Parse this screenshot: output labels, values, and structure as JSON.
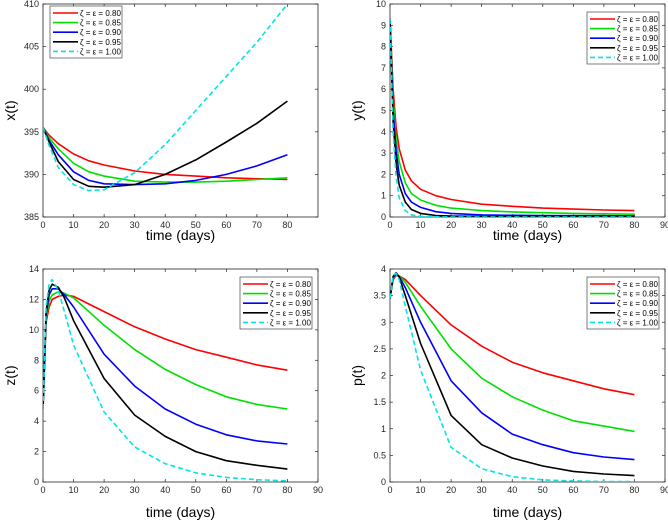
{
  "legend_labels": [
    "ζ = ε = 0.80",
    "ζ = ε = 0.85",
    "ζ = ε = 0.90",
    "ζ = ε = 0.95",
    "ζ = ε = 1.00"
  ],
  "series_colors": [
    "#ff0000",
    "#00e000",
    "#0000ff",
    "#000000",
    "#00e5e5"
  ],
  "chart_data": [
    {
      "type": "line",
      "title": "",
      "xlabel": "time (days)",
      "ylabel": "x(t)",
      "xlim": [
        0,
        90
      ],
      "ylim": [
        385,
        410
      ],
      "xticks": [
        "0",
        "10",
        "20",
        "30",
        "40",
        "50",
        "60",
        "70",
        "80"
      ],
      "yticks": [
        "385",
        "390",
        "395",
        "400",
        "405",
        "410"
      ],
      "legend": "top-left",
      "x": [
        0,
        2,
        5,
        10,
        15,
        20,
        30,
        40,
        50,
        60,
        70,
        80
      ],
      "series": [
        {
          "name": "ζ = ε = 0.80",
          "values": [
            395.5,
            394.6,
            393.6,
            392.4,
            391.6,
            391.1,
            390.4,
            390.0,
            389.8,
            389.6,
            389.5,
            389.4
          ]
        },
        {
          "name": "ζ = ε = 0.85",
          "values": [
            395.5,
            394.3,
            393.0,
            391.3,
            390.3,
            389.8,
            389.2,
            389.1,
            389.1,
            389.2,
            389.4,
            389.6
          ]
        },
        {
          "name": "ζ = ε = 0.90",
          "values": [
            395.5,
            394.0,
            392.3,
            390.3,
            389.3,
            388.9,
            388.8,
            388.9,
            389.3,
            390.0,
            391.0,
            392.3
          ]
        },
        {
          "name": "ζ = ε = 0.95",
          "values": [
            395.5,
            393.8,
            391.5,
            389.4,
            388.6,
            388.5,
            388.8,
            390.0,
            391.7,
            393.8,
            396.0,
            398.6
          ]
        },
        {
          "name": "ζ = ε = 1.00",
          "values": [
            395.5,
            393.4,
            390.8,
            388.8,
            388.1,
            388.2,
            390.2,
            393.5,
            397.5,
            401.5,
            405.5,
            410.0
          ]
        }
      ]
    },
    {
      "type": "line",
      "title": "",
      "xlabel": "time (days)",
      "ylabel": "y(t)",
      "xlim": [
        0,
        90
      ],
      "ylim": [
        0,
        10
      ],
      "xticks": [
        "0",
        "10",
        "20",
        "30",
        "40",
        "50",
        "60",
        "70",
        "80",
        "90"
      ],
      "yticks": [
        "0",
        "1",
        "2",
        "3",
        "4",
        "5",
        "6",
        "7",
        "8",
        "9",
        "10"
      ],
      "legend": "top-right",
      "x": [
        0,
        1,
        2,
        3,
        5,
        7,
        10,
        15,
        20,
        30,
        40,
        50,
        60,
        70,
        80
      ],
      "series": [
        {
          "name": "ζ = ε = 0.80",
          "values": [
            9.3,
            6.0,
            4.2,
            3.2,
            2.2,
            1.7,
            1.3,
            1.0,
            0.82,
            0.6,
            0.5,
            0.42,
            0.37,
            0.33,
            0.3
          ]
        },
        {
          "name": "ζ = ε = 0.85",
          "values": [
            9.3,
            5.5,
            3.6,
            2.6,
            1.6,
            1.1,
            0.8,
            0.55,
            0.42,
            0.3,
            0.24,
            0.2,
            0.17,
            0.15,
            0.13
          ]
        },
        {
          "name": "ζ = ε = 0.90",
          "values": [
            9.3,
            5.0,
            3.1,
            2.0,
            1.1,
            0.7,
            0.45,
            0.25,
            0.17,
            0.1,
            0.08,
            0.07,
            0.06,
            0.06,
            0.05
          ]
        },
        {
          "name": "ζ = ε = 0.95",
          "values": [
            9.3,
            4.5,
            2.5,
            1.5,
            0.7,
            0.35,
            0.17,
            0.07,
            0.04,
            0.02,
            0.02,
            0.02,
            0.02,
            0.02,
            0.02
          ]
        },
        {
          "name": "ζ = ε = 1.00",
          "values": [
            9.3,
            4.0,
            1.9,
            0.9,
            0.3,
            0.1,
            0.03,
            0.01,
            0,
            0,
            0,
            0,
            0,
            0,
            0
          ]
        }
      ]
    },
    {
      "type": "line",
      "title": "",
      "xlabel": "time (days)",
      "ylabel": "z(t)",
      "xlim": [
        0,
        90
      ],
      "ylim": [
        0,
        14
      ],
      "xticks": [
        "0",
        "10",
        "20",
        "30",
        "40",
        "50",
        "60",
        "70",
        "80",
        "90"
      ],
      "yticks": [
        "0",
        "2",
        "4",
        "6",
        "8",
        "10",
        "12",
        "14"
      ],
      "legend": "top-right",
      "x": [
        0,
        1,
        2,
        3,
        5,
        7,
        10,
        20,
        30,
        40,
        50,
        60,
        70,
        80
      ],
      "series": [
        {
          "name": "ζ = ε = 0.80",
          "values": [
            4.8,
            10.5,
            11.5,
            12.0,
            12.2,
            12.3,
            12.2,
            11.2,
            10.2,
            9.4,
            8.7,
            8.2,
            7.7,
            7.35
          ]
        },
        {
          "name": "ζ = ε = 0.85",
          "values": [
            4.8,
            10.8,
            11.9,
            12.3,
            12.5,
            12.4,
            12.1,
            10.3,
            8.7,
            7.4,
            6.4,
            5.6,
            5.1,
            4.8
          ]
        },
        {
          "name": "ζ = ε = 0.90",
          "values": [
            4.8,
            11.0,
            12.3,
            12.7,
            12.7,
            12.3,
            11.5,
            8.4,
            6.3,
            4.8,
            3.8,
            3.1,
            2.7,
            2.5
          ]
        },
        {
          "name": "ζ = ε = 0.95",
          "values": [
            4.8,
            11.2,
            12.6,
            13.0,
            12.8,
            12.1,
            10.6,
            6.8,
            4.4,
            3.0,
            2.0,
            1.4,
            1.1,
            0.85
          ]
        },
        {
          "name": "ζ = ε = 1.00",
          "values": [
            4.8,
            11.5,
            13.0,
            13.3,
            12.6,
            11.2,
            9.0,
            4.6,
            2.3,
            1.2,
            0.6,
            0.3,
            0.15,
            0.07
          ]
        }
      ]
    },
    {
      "type": "line",
      "title": "",
      "xlabel": "time (days)",
      "ylabel": "p(t)",
      "xlim": [
        0,
        90
      ],
      "ylim": [
        0,
        4
      ],
      "xticks": [
        "0",
        "10",
        "20",
        "30",
        "40",
        "50",
        "60",
        "70",
        "80",
        "90"
      ],
      "yticks": [
        "0",
        "0.5",
        "1",
        "1.5",
        "2",
        "2.5",
        "3",
        "3.5",
        "4"
      ],
      "legend": "top-right",
      "x": [
        0,
        1,
        2,
        3,
        5,
        10,
        20,
        30,
        40,
        50,
        60,
        70,
        80
      ],
      "series": [
        {
          "name": "ζ = ε = 0.80",
          "values": [
            3.45,
            3.8,
            3.88,
            3.87,
            3.8,
            3.5,
            2.95,
            2.55,
            2.25,
            2.05,
            1.9,
            1.75,
            1.64
          ]
        },
        {
          "name": "ζ = ε = 0.85",
          "values": [
            3.45,
            3.82,
            3.9,
            3.87,
            3.75,
            3.3,
            2.5,
            1.95,
            1.6,
            1.35,
            1.15,
            1.05,
            0.95
          ]
        },
        {
          "name": "ζ = ε = 0.90",
          "values": [
            3.45,
            3.84,
            3.91,
            3.86,
            3.65,
            3.0,
            1.9,
            1.3,
            0.9,
            0.7,
            0.55,
            0.47,
            0.42
          ]
        },
        {
          "name": "ζ = ε = 0.95",
          "values": [
            3.45,
            3.86,
            3.93,
            3.85,
            3.5,
            2.6,
            1.25,
            0.7,
            0.45,
            0.3,
            0.2,
            0.15,
            0.12
          ]
        },
        {
          "name": "ζ = ε = 1.00",
          "values": [
            3.45,
            3.88,
            3.92,
            3.8,
            3.3,
            2.1,
            0.65,
            0.25,
            0.1,
            0.04,
            0.02,
            0.01,
            0.01
          ]
        }
      ]
    }
  ]
}
